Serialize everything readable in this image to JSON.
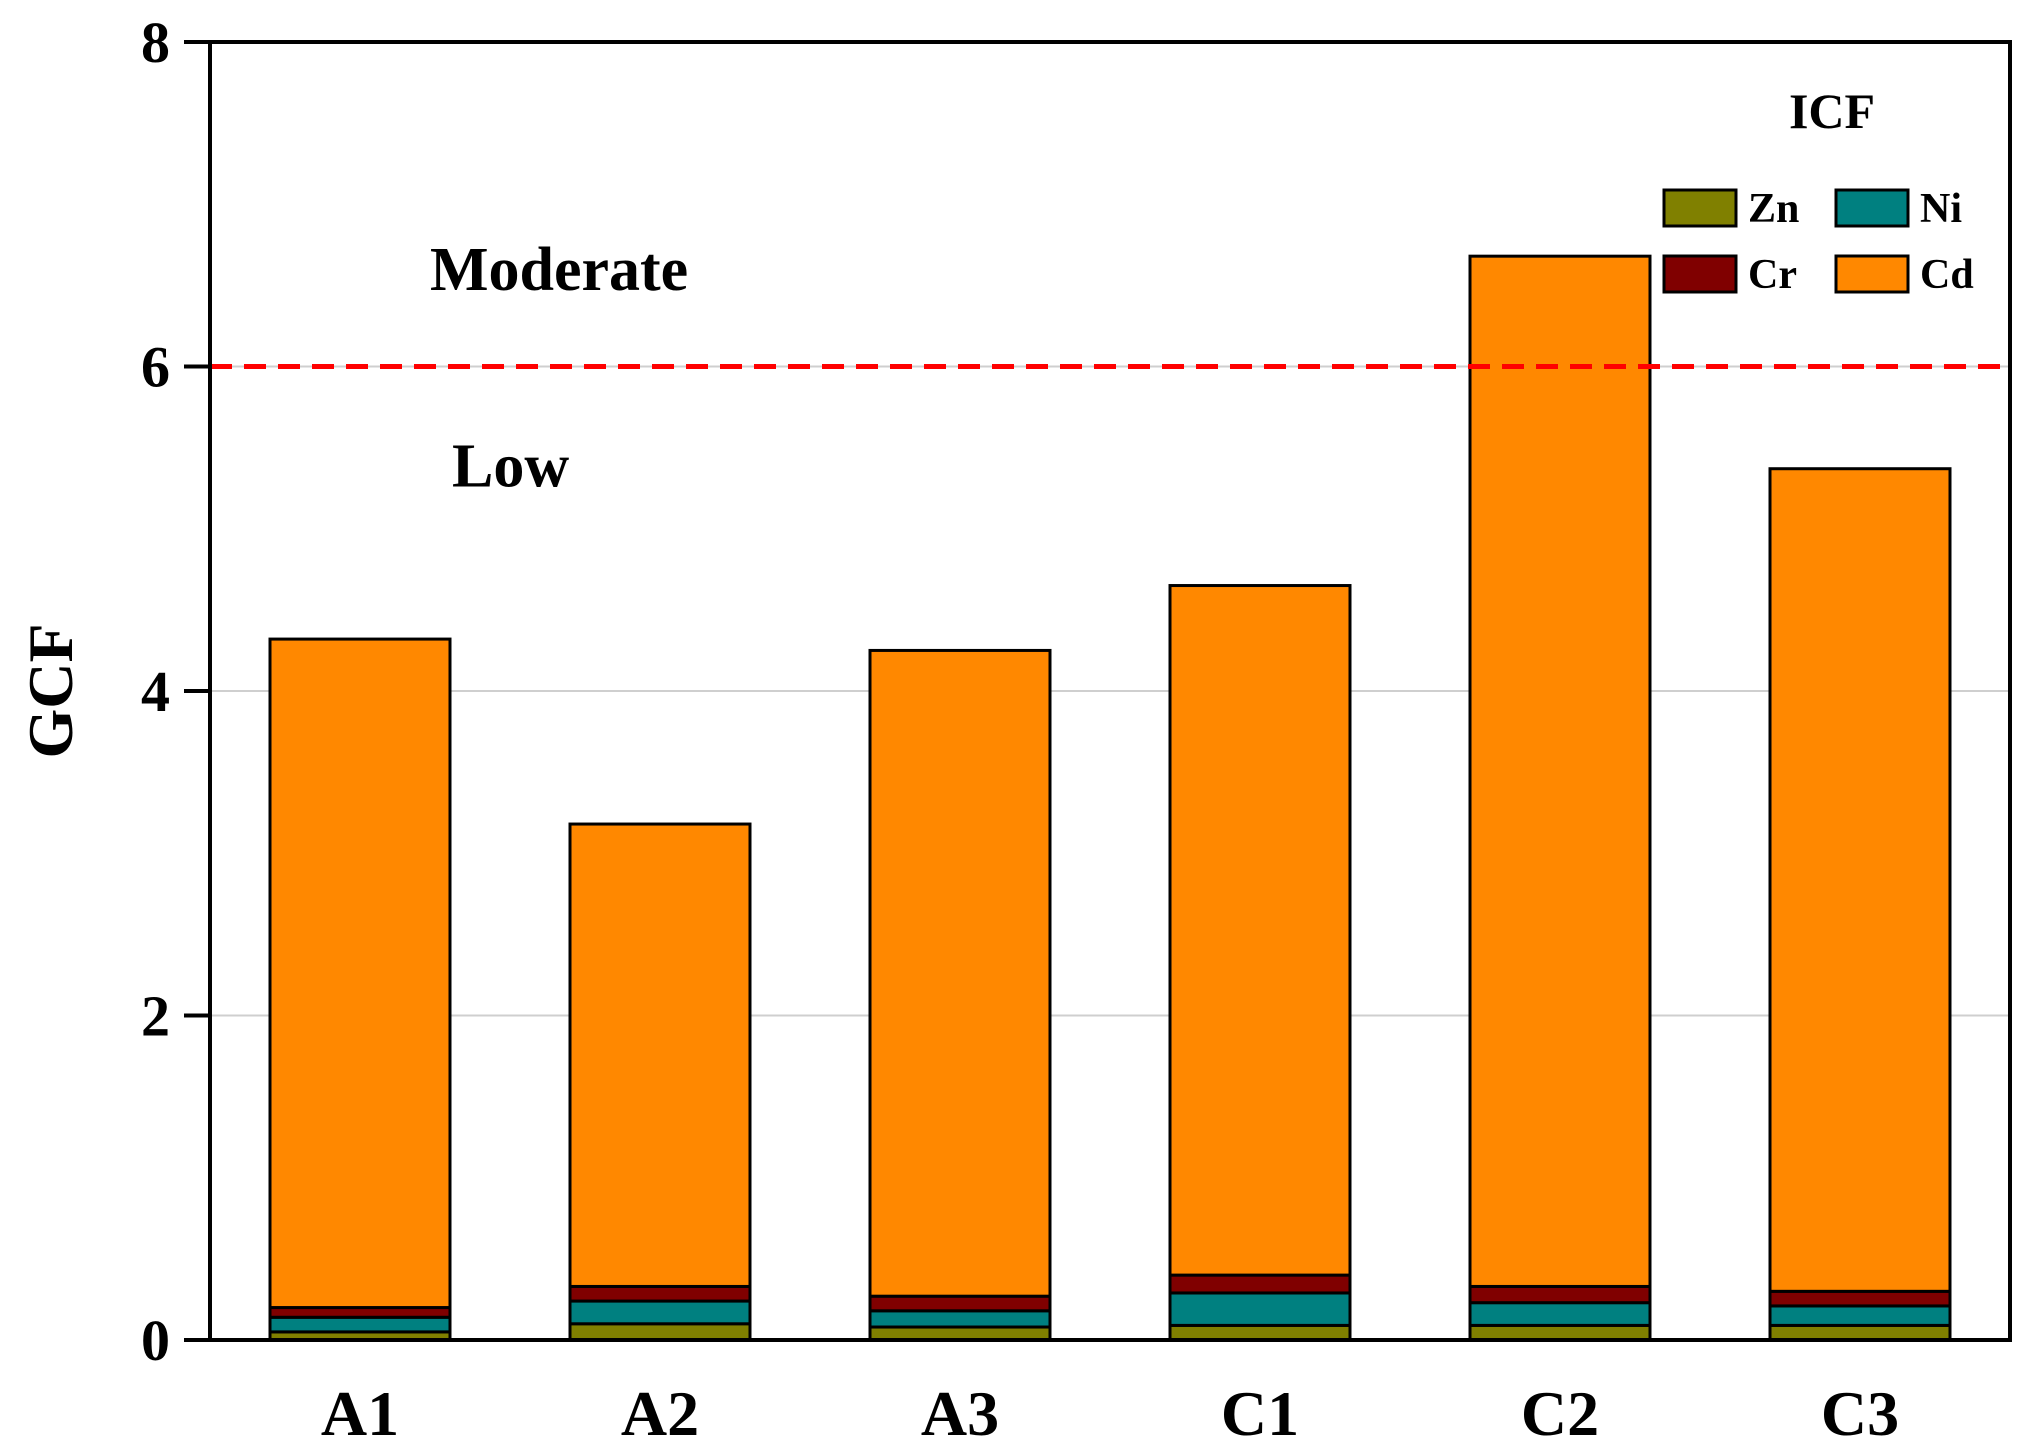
{
  "chart_data": {
    "type": "bar",
    "stacked": true,
    "title": "",
    "xlabel": "",
    "ylabel": "GCF",
    "ylim": [
      0,
      8
    ],
    "yticks": [
      "0",
      "2",
      "4",
      "6",
      "8"
    ],
    "grid": true,
    "categories": [
      "A1",
      "A2",
      "A3",
      "C1",
      "C2",
      "C3"
    ],
    "series": [
      {
        "name": "Zn",
        "color": "#808000",
        "values": [
          0.05,
          0.1,
          0.08,
          0.09,
          0.09,
          0.09
        ]
      },
      {
        "name": "Ni",
        "color": "#008080",
        "values": [
          0.09,
          0.14,
          0.1,
          0.2,
          0.14,
          0.12
        ]
      },
      {
        "name": "Cr",
        "color": "#800000",
        "values": [
          0.06,
          0.09,
          0.09,
          0.11,
          0.1,
          0.09
        ]
      },
      {
        "name": "Cd",
        "color": "#FF8800",
        "values": [
          4.12,
          2.85,
          3.98,
          4.25,
          6.35,
          5.07
        ]
      }
    ],
    "threshold": {
      "value": 6,
      "color": "#FF0000",
      "style": "dashed"
    },
    "zone_labels": {
      "above": "Moderate",
      "below": "Low"
    },
    "legend": {
      "title": "ICF",
      "position": "top-right",
      "entries": [
        "Zn",
        "Ni",
        "Cr",
        "Cd"
      ]
    }
  }
}
